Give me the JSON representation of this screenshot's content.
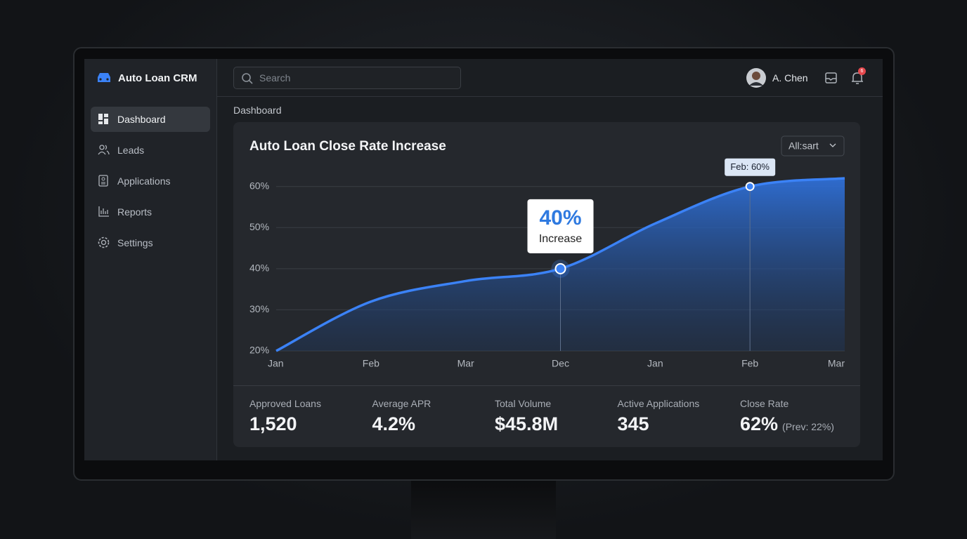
{
  "app": {
    "brand": "Auto Loan CRM",
    "search_placeholder": "Search",
    "user": "A. Chen",
    "notification_count": "6"
  },
  "nav": [
    "Dashboard",
    "Leads",
    "Applications",
    "Reports",
    "Settings"
  ],
  "breadcrumb": "Dashboard",
  "chart_data": {
    "type": "line",
    "title": "Auto Loan Close Rate Increase",
    "filter": "All:sart",
    "categories": [
      "Jan",
      "Feb",
      "Mar",
      "Dec",
      "Jan",
      "Feb",
      "Mar"
    ],
    "values": [
      20,
      32,
      37,
      40,
      51,
      60,
      62
    ],
    "color": "#3b82f6",
    "ylim": [
      20,
      62
    ],
    "yticks": [
      {
        "value": 20,
        "label": "20%"
      },
      {
        "value": 30,
        "label": "30%"
      },
      {
        "value": 40,
        "label": "40%"
      },
      {
        "value": 50,
        "label": "50%"
      },
      {
        "value": 60,
        "label": "60%"
      }
    ],
    "grid": true,
    "annotations": [
      {
        "big": "40%",
        "text": "Increase"
      },
      {
        "text": "Feb: 60%"
      }
    ]
  },
  "stats": [
    {
      "label": "Approved Loans",
      "value": "1,520"
    },
    {
      "label": "Average APR",
      "value": "4.2%"
    },
    {
      "label": "Total Volume",
      "value": "$45.8M"
    },
    {
      "label": "Active Applications",
      "value": "345"
    },
    {
      "label": "Close Rate",
      "value": "62%",
      "note": "(Prev: 22%)"
    }
  ]
}
